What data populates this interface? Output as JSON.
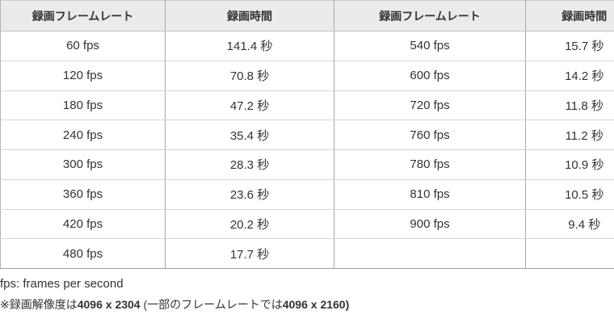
{
  "table": {
    "headers": [
      "録画フレームレート",
      "録画時間",
      "録画フレームレート",
      "録画時間"
    ],
    "rows": [
      [
        "60 fps",
        "141.4 秒",
        "540 fps",
        "15.7 秒"
      ],
      [
        "120 fps",
        "70.8 秒",
        "600 fps",
        "14.2 秒"
      ],
      [
        "180 fps",
        "47.2 秒",
        "720 fps",
        "11.8 秒"
      ],
      [
        "240 fps",
        "35.4 秒",
        "760 fps",
        "11.2 秒"
      ],
      [
        "300 fps",
        "28.3 秒",
        "780 fps",
        "10.9 秒"
      ],
      [
        "360 fps",
        "23.6 秒",
        "810 fps",
        "10.5 秒"
      ],
      [
        "420 fps",
        "20.2 秒",
        "900 fps",
        "9.4 秒"
      ],
      [
        "480 fps",
        "17.7 秒",
        "",
        ""
      ]
    ]
  },
  "footnotes": {
    "line1": "fps: frames per second",
    "line2_segments": [
      {
        "text": "※録画解像度は",
        "bold": false
      },
      {
        "text": "4096 x 2304",
        "bold": true
      },
      {
        "text": " (一部のフレームレートでは",
        "bold": false
      },
      {
        "text": "4096 x 2160)",
        "bold": true
      }
    ]
  },
  "colors": {
    "header_bg": "#ebebeb",
    "vertical_divider": "#a8a8a8",
    "horizontal_divider": "#d4d4d4",
    "table_bottom_border": "#9e9e9e",
    "text": "#333333"
  }
}
